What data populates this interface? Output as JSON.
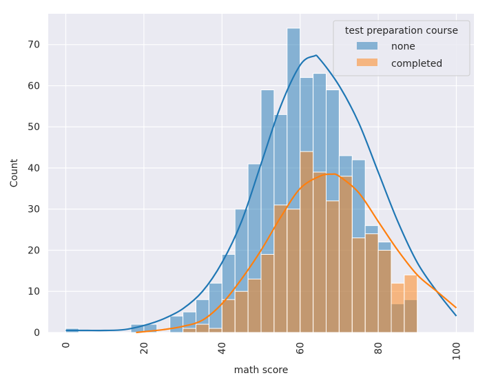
{
  "chart_data": {
    "type": "bar",
    "subtype": "overlapping histogram with KDE curves",
    "title": "",
    "xlabel": "math score",
    "ylabel": "Count",
    "xlim": [
      -4.5,
      104.5
    ],
    "ylim": [
      0,
      77.5
    ],
    "x_ticks": [
      0,
      20,
      40,
      60,
      80,
      100
    ],
    "x_tick_labels": [
      "0",
      "20",
      "40",
      "60",
      "80",
      "100"
    ],
    "y_ticks": [
      0,
      10,
      20,
      30,
      40,
      50,
      60,
      70
    ],
    "y_tick_labels": [
      "0",
      "10",
      "20",
      "30",
      "40",
      "50",
      "60",
      "70"
    ],
    "x_tick_rotation": 90,
    "grid": true,
    "background": "#eaeaf2",
    "bin_edges": [
      0,
      3.333,
      6.667,
      10,
      13.333,
      16.667,
      20,
      23.333,
      26.667,
      30,
      33.333,
      36.667,
      40,
      43.333,
      46.667,
      50,
      53.333,
      56.667,
      60,
      63.333,
      66.667,
      70,
      73.333,
      76.667,
      80,
      83.333,
      86.667,
      90,
      93.333,
      96.667,
      100
    ],
    "legend": {
      "title": "test preparation course",
      "position": "top-right",
      "entries": [
        "none",
        "completed"
      ]
    },
    "series": [
      {
        "name": "none",
        "color": "#1f77b4",
        "values": [
          1,
          0,
          0,
          0,
          0,
          2,
          2,
          0,
          4,
          5,
          8,
          12,
          19,
          30,
          41,
          59,
          53,
          74,
          62,
          63,
          59,
          43,
          42,
          26,
          22,
          7,
          8,
          0,
          0,
          0
        ],
        "kde_x": [
          0,
          5,
          10,
          15,
          20,
          25,
          30,
          35,
          40,
          45,
          50,
          55,
          60,
          63.5,
          65,
          70,
          75,
          80,
          85,
          90,
          95,
          100
        ],
        "kde_y": [
          0.5,
          0.5,
          0.5,
          0.7,
          1.7,
          3.3,
          5.8,
          10,
          17,
          27,
          41,
          55,
          65,
          67.2,
          66.5,
          60,
          51,
          39,
          27,
          17,
          10,
          4
        ]
      },
      {
        "name": "completed",
        "color": "#ff7f0e",
        "values": [
          0,
          0,
          0,
          0,
          0,
          0,
          0,
          0,
          0,
          1,
          2,
          1,
          8,
          10,
          13,
          19,
          31,
          30,
          44,
          39,
          32,
          38,
          23,
          24,
          20,
          12,
          14,
          0,
          0,
          0
        ],
        "kde_x": [
          18,
          20,
          25,
          30,
          35,
          40,
          45,
          50,
          55,
          60,
          65,
          68,
          70,
          75,
          80,
          85,
          90,
          95,
          100
        ],
        "kde_y": [
          0,
          0.2,
          0.7,
          1.5,
          3,
          7,
          13,
          20,
          28,
          35,
          38,
          38.5,
          38,
          34,
          27,
          20,
          14,
          10,
          6
        ]
      }
    ]
  }
}
